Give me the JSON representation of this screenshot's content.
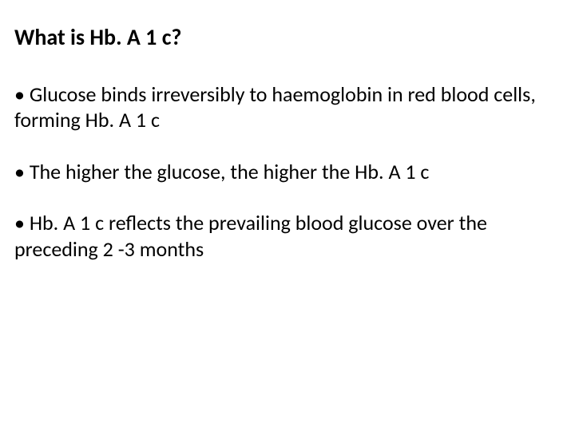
{
  "slide": {
    "title": "What is Hb. A 1 c?",
    "bullets": [
      "• Glucose binds irreversibly to haemoglobin in red blood cells, forming Hb. A 1 c",
      "• The higher the glucose, the higher the Hb. A 1 c",
      "• Hb. A 1 c reflects the prevailing blood glucose over the preceding 2 -3 months"
    ],
    "colors": {
      "background": "#ffffff",
      "text": "#000000"
    },
    "typography": {
      "title_fontsize": 28,
      "title_fontweight": "bold",
      "body_fontsize": 26,
      "font_family": "Calibri, Arial, sans-serif"
    }
  }
}
